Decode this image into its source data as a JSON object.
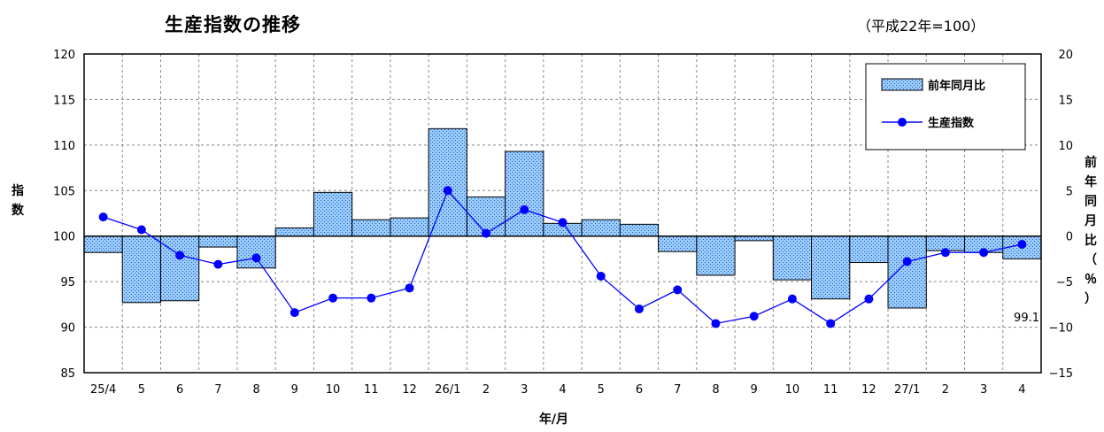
{
  "title": "生産指数の推移",
  "subtitle": "（平成22年=100）",
  "chart_data": {
    "type": "bar+line",
    "categories": [
      "25/4",
      "5",
      "6",
      "7",
      "8",
      "9",
      "10",
      "11",
      "12",
      "26/1",
      "2",
      "3",
      "4",
      "5",
      "6",
      "7",
      "8",
      "9",
      "10",
      "11",
      "12",
      "27/1",
      "2",
      "3",
      "4"
    ],
    "series": [
      {
        "name": "前年同月比",
        "axis": "right",
        "type": "bar",
        "values": [
          -1.8,
          -7.3,
          -7.1,
          -1.2,
          -3.5,
          0.9,
          4.8,
          1.8,
          2.0,
          11.8,
          4.3,
          9.3,
          1.4,
          1.8,
          1.3,
          -1.7,
          -4.3,
          -0.5,
          -4.8,
          -6.9,
          -2.9,
          -7.9,
          -1.6,
          -1.8,
          -2.5
        ]
      },
      {
        "name": "生産指数",
        "axis": "left",
        "type": "line",
        "values": [
          102.1,
          100.7,
          97.9,
          96.9,
          97.6,
          91.6,
          93.2,
          93.2,
          94.3,
          105.0,
          100.3,
          102.9,
          101.5,
          95.6,
          92.0,
          94.1,
          90.4,
          91.2,
          93.1,
          90.4,
          93.1,
          97.2,
          98.2,
          98.2,
          99.1
        ]
      }
    ],
    "ylabel": "指数",
    "y2label": "前年同月比（％）",
    "xlabel": "年/月",
    "ylim": [
      85,
      120
    ],
    "y2lim": [
      -15,
      20
    ],
    "yticks": [
      "120",
      "115",
      "110",
      "105",
      "100",
      "95",
      "90",
      "85"
    ],
    "y2ticks": [
      "20",
      "15",
      "10",
      "5",
      "0",
      "−5",
      "−10",
      "−15"
    ],
    "annotation": "99.1",
    "legend_position": "top-right",
    "grid": true,
    "colors": {
      "bar_fill": "#99ccff",
      "bar_dots": "#2255aa",
      "bar_stroke": "#000000",
      "line": "#0000ff"
    }
  }
}
